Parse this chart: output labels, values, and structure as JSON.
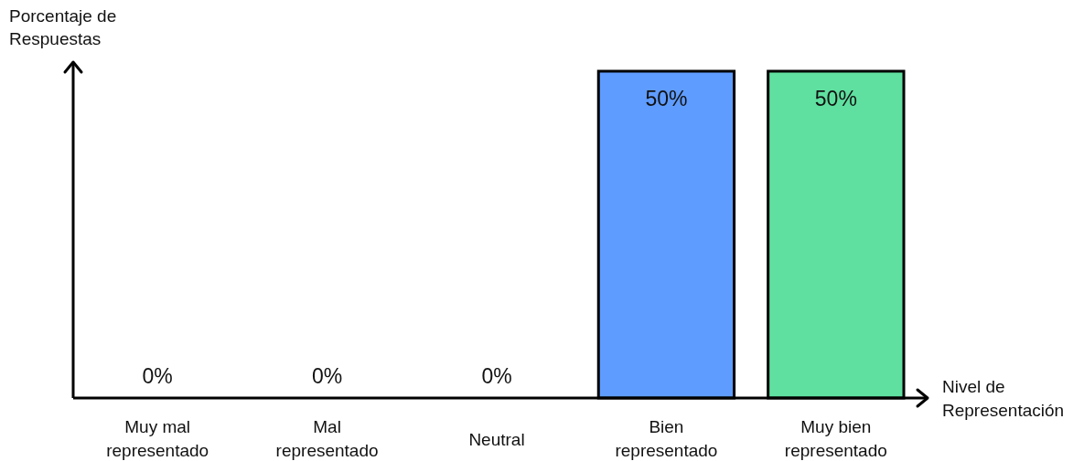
{
  "chart_data": {
    "type": "bar",
    "xlabel": "Nivel de Representación",
    "ylabel": "Porcentaje de Respuestas",
    "categories": [
      "Muy mal representado",
      "Mal representado",
      "Neutral",
      "Bien representado",
      "Muy bien representado"
    ],
    "values": [
      0,
      0,
      0,
      50,
      50
    ],
    "value_labels": [
      "0%",
      "0%",
      "0%",
      "50%",
      "50%"
    ],
    "colors": [
      "#5f9cff",
      "#5f9cff",
      "#5f9cff",
      "#5f9cff",
      "#5fe0a0"
    ]
  }
}
